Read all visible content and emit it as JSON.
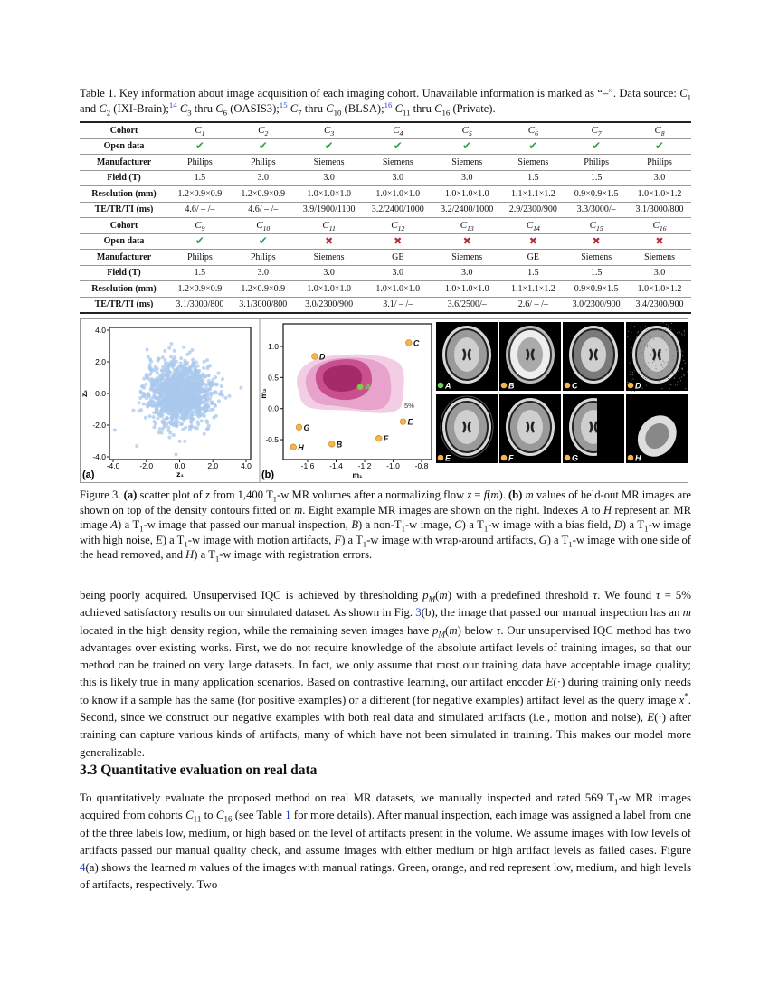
{
  "table_caption": [
    [
      "Table 1. Key information about image acquisition of each imaging cohort. Unavailable information is marked as “–”. Data source: ",
      ""
    ],
    [
      "C",
      "i"
    ],
    [
      "1",
      "sub"
    ],
    [
      " and ",
      ""
    ],
    [
      "C",
      "i"
    ],
    [
      "2",
      "sub"
    ],
    [
      " (IXI-Brain);",
      ""
    ],
    [
      "14",
      "supl"
    ],
    [
      " ",
      ""
    ],
    [
      "C",
      "i"
    ],
    [
      "3",
      "sub"
    ],
    [
      " thru ",
      ""
    ],
    [
      "C",
      "i"
    ],
    [
      "6",
      "sub"
    ],
    [
      " (OASIS3);",
      ""
    ],
    [
      "15",
      "supl"
    ],
    [
      " ",
      ""
    ],
    [
      "C",
      "i"
    ],
    [
      "7",
      "sub"
    ],
    [
      " thru ",
      ""
    ],
    [
      "C",
      "i"
    ],
    [
      "10",
      "sub"
    ],
    [
      " (BLSA);",
      ""
    ],
    [
      "16",
      "supl"
    ],
    [
      " ",
      ""
    ],
    [
      "C",
      "i"
    ],
    [
      "11",
      "sub"
    ],
    [
      " thru ",
      ""
    ],
    [
      "C",
      "i"
    ],
    [
      "16",
      "sub"
    ],
    [
      " (Private).",
      ""
    ]
  ],
  "table": {
    "row_labels": [
      "Cohort",
      "Open data",
      "Manufacturer",
      "Field (T)",
      "Resolution (mm)",
      "TE/TR/TI (ms)"
    ],
    "blocks": [
      {
        "cohorts": [
          "1",
          "2",
          "3",
          "4",
          "5",
          "6",
          "7",
          "8"
        ],
        "open": [
          true,
          true,
          true,
          true,
          true,
          true,
          true,
          true
        ],
        "manufacturer": [
          "Philips",
          "Philips",
          "Siemens",
          "Siemens",
          "Siemens",
          "Siemens",
          "Philips",
          "Philips"
        ],
        "field": [
          "1.5",
          "3.0",
          "3.0",
          "3.0",
          "3.0",
          "1.5",
          "1.5",
          "3.0"
        ],
        "resolution": [
          "1.2×0.9×0.9",
          "1.2×0.9×0.9",
          "1.0×1.0×1.0",
          "1.0×1.0×1.0",
          "1.0×1.0×1.0",
          "1.1×1.1×1.2",
          "0.9×0.9×1.5",
          "1.0×1.0×1.2"
        ],
        "te_tr_ti": [
          "4.6/ – /–",
          "4.6/ – /–",
          "3.9/1900/1100",
          "3.2/2400/1000",
          "3.2/2400/1000",
          "2.9/2300/900",
          "3.3/3000/–",
          "3.1/3000/800"
        ]
      },
      {
        "cohorts": [
          "9",
          "10",
          "11",
          "12",
          "13",
          "14",
          "15",
          "16"
        ],
        "open": [
          true,
          true,
          false,
          false,
          false,
          false,
          false,
          false
        ],
        "manufacturer": [
          "Philips",
          "Philips",
          "Siemens",
          "GE",
          "Siemens",
          "GE",
          "Siemens",
          "Siemens"
        ],
        "field": [
          "1.5",
          "3.0",
          "3.0",
          "3.0",
          "3.0",
          "1.5",
          "1.5",
          "3.0"
        ],
        "resolution": [
          "1.2×0.9×0.9",
          "1.2×0.9×0.9",
          "1.0×1.0×1.0",
          "1.0×1.0×1.0",
          "1.0×1.0×1.0",
          "1.1×1.1×1.2",
          "0.9×0.9×1.5",
          "1.0×1.0×1.2"
        ],
        "te_tr_ti": [
          "3.1/3000/800",
          "3.1/3000/800",
          "3.0/2300/900",
          "3.1/ – /–",
          "3.6/2500/–",
          "2.6/ – /–",
          "3.0/2300/900",
          "3.4/2300/900"
        ]
      }
    ],
    "icons": {
      "yes": "check-icon",
      "no": "cross-icon"
    },
    "colors": {
      "yes": "#2e9e4f",
      "no": "#b0303a"
    }
  },
  "chart_data": [
    {
      "type": "scatter",
      "panel_label": "(a)",
      "xlabel": "z₁",
      "ylabel": "z₂",
      "xlim": [
        -4.0,
        4.0
      ],
      "ylim": [
        -4.0,
        4.0
      ],
      "xticks": [
        "-4.0",
        "-2.0",
        "0.0",
        "2.0",
        "4.0"
      ],
      "yticks": [
        "4.0",
        "2.0",
        "0.0",
        "-2.0",
        "-4.0"
      ],
      "point_count": 1400,
      "distribution": "approximately standard normal, centered at (0,0)",
      "color": "#a9c8ec"
    },
    {
      "type": "scatter",
      "panel_label": "(b)",
      "xlabel": "m₁",
      "ylabel": "m₂",
      "xlim": [
        -1.75,
        -0.78
      ],
      "ylim": [
        -0.72,
        1.3
      ],
      "xticks": [
        "-1.6",
        "-1.4",
        "-1.2",
        "-1.0",
        "-0.8"
      ],
      "yticks": [
        "1.0",
        "0.5",
        "0.0",
        "-0.5"
      ],
      "contour_label": "5%",
      "contour_colors": [
        "#f3cde3",
        "#e7a3cb",
        "#c9508f",
        "#a52a6a"
      ],
      "points": [
        {
          "label": "A",
          "x": -1.23,
          "y": 0.35,
          "color": "#6fd05a"
        },
        {
          "label": "B",
          "x": -1.43,
          "y": -0.57,
          "color": "#f5b54a"
        },
        {
          "label": "C",
          "x": -0.89,
          "y": 1.06,
          "color": "#f5b54a"
        },
        {
          "label": "D",
          "x": -1.55,
          "y": 0.84,
          "color": "#f5b54a"
        },
        {
          "label": "E",
          "x": -0.93,
          "y": -0.21,
          "color": "#f5b54a"
        },
        {
          "label": "F",
          "x": -1.1,
          "y": -0.48,
          "color": "#f5b54a"
        },
        {
          "label": "G",
          "x": -1.66,
          "y": -0.3,
          "color": "#f5b54a"
        },
        {
          "label": "H",
          "x": -1.7,
          "y": -0.62,
          "color": "#f5b54a"
        }
      ]
    }
  ],
  "mr_images": [
    {
      "label": "A",
      "dot": "#6fd05a",
      "kind": "normal"
    },
    {
      "label": "B",
      "dot": "#f5b54a",
      "kind": "non-t1"
    },
    {
      "label": "C",
      "dot": "#f5b54a",
      "kind": "bias"
    },
    {
      "label": "D",
      "dot": "#f5b54a",
      "kind": "noise"
    },
    {
      "label": "E",
      "dot": "#f5b54a",
      "kind": "motion"
    },
    {
      "label": "F",
      "dot": "#f5b54a",
      "kind": "wrap"
    },
    {
      "label": "G",
      "dot": "#f5b54a",
      "kind": "half"
    },
    {
      "label": "H",
      "dot": "#f5b54a",
      "kind": "registration"
    }
  ],
  "figure_caption": [
    [
      "Figure 3. ",
      ""
    ],
    [
      "(a)",
      "b"
    ],
    [
      " scatter plot of ",
      ""
    ],
    [
      "z",
      "i"
    ],
    [
      " from 1,400 T",
      ""
    ],
    [
      "1",
      "sub"
    ],
    [
      "-w MR volumes after a normalizing flow ",
      ""
    ],
    [
      "z",
      "i"
    ],
    [
      " = ",
      ""
    ],
    [
      "f",
      "i"
    ],
    [
      "(",
      ""
    ],
    [
      "m",
      "i"
    ],
    [
      "). ",
      ""
    ],
    [
      "(b)",
      "b"
    ],
    [
      " ",
      ""
    ],
    [
      "m",
      "i"
    ],
    [
      " values of held-out MR images are shown on top of the density contours fitted on ",
      ""
    ],
    [
      "m",
      "i"
    ],
    [
      ". Eight example MR images are shown on the right. Indexes ",
      ""
    ],
    [
      "A",
      "i"
    ],
    [
      " to ",
      ""
    ],
    [
      "H",
      "i"
    ],
    [
      " represent an MR image ",
      ""
    ],
    [
      "A",
      "i"
    ],
    [
      ") a T",
      ""
    ],
    [
      "1",
      "sub"
    ],
    [
      "-w image that passed our manual inspection, ",
      ""
    ],
    [
      "B",
      "i"
    ],
    [
      ") a non-T",
      ""
    ],
    [
      "1",
      "sub"
    ],
    [
      "-w image, ",
      ""
    ],
    [
      "C",
      "i"
    ],
    [
      ") a T",
      ""
    ],
    [
      "1",
      "sub"
    ],
    [
      "-w image with a bias field, ",
      ""
    ],
    [
      "D",
      "i"
    ],
    [
      ") a T",
      ""
    ],
    [
      "1",
      "sub"
    ],
    [
      "-w image with high noise, ",
      ""
    ],
    [
      "E",
      "i"
    ],
    [
      ") a T",
      ""
    ],
    [
      "1",
      "sub"
    ],
    [
      "-w image with motion artifacts, ",
      ""
    ],
    [
      "F",
      "i"
    ],
    [
      ") a T",
      ""
    ],
    [
      "1",
      "sub"
    ],
    [
      "-w image with wrap-around artifacts, ",
      ""
    ],
    [
      "G",
      "i"
    ],
    [
      ") a T",
      ""
    ],
    [
      "1",
      "sub"
    ],
    [
      "-w image with one side of the head removed, and ",
      ""
    ],
    [
      "H",
      "i"
    ],
    [
      ") a T",
      ""
    ],
    [
      "1",
      "sub"
    ],
    [
      "-w image with registration errors.",
      ""
    ]
  ],
  "paragraph1": [
    [
      "being poorly acquired. Unsupervised IQC is achieved by thresholding ",
      ""
    ],
    [
      "p",
      "i"
    ],
    [
      "M",
      "isub"
    ],
    [
      "(",
      ""
    ],
    [
      "m",
      "i"
    ],
    [
      ") with a predefined threshold ",
      ""
    ],
    [
      "τ",
      "i"
    ],
    [
      ". We found ",
      ""
    ],
    [
      "τ",
      "i"
    ],
    [
      " = 5% achieved satisfactory results on our simulated dataset. As shown in Fig. ",
      ""
    ],
    [
      "3",
      "link"
    ],
    [
      "(b), the image that passed our manual inspection has an ",
      ""
    ],
    [
      "m",
      "i"
    ],
    [
      " located in the high density region, while the remaining seven images have ",
      ""
    ],
    [
      "p",
      "i"
    ],
    [
      "M",
      "isub"
    ],
    [
      "(",
      ""
    ],
    [
      "m",
      "i"
    ],
    [
      ") below ",
      ""
    ],
    [
      "τ",
      "i"
    ],
    [
      ". Our unsupervised IQC method has two advantages over existing works. First, we do not require knowledge of the absolute artifact levels of training images, so that our method can be trained on very large datasets. In fact, we only assume that most our training data have acceptable image quality; this is likely true in many application scenarios. Based on contrastive learning, our artifact encoder ",
      ""
    ],
    [
      "E",
      "i"
    ],
    [
      "(·) during training only needs to know if a sample has the same (for positive examples) or a different (for negative examples) artifact level as the query image ",
      ""
    ],
    [
      "x",
      "i"
    ],
    [
      "*",
      "sup"
    ],
    [
      ". Second, since we construct our negative examples with both real data and simulated artifacts (i.e., motion and noise), ",
      ""
    ],
    [
      "E",
      "i"
    ],
    [
      "(·) after training can capture various kinds of artifacts, many of which have not been simulated in training. This makes our model more generalizable.",
      ""
    ]
  ],
  "section_heading": "3.3  Quantitative evaluation on real data",
  "paragraph2": [
    [
      "To quantitatively evaluate the proposed method on real MR datasets, we manually inspected and rated 569 T",
      ""
    ],
    [
      "1",
      "sub"
    ],
    [
      "-w MR images acquired from cohorts ",
      ""
    ],
    [
      "C",
      "i"
    ],
    [
      "11",
      "sub"
    ],
    [
      " to ",
      ""
    ],
    [
      "C",
      "i"
    ],
    [
      "16",
      "sub"
    ],
    [
      " (see Table ",
      ""
    ],
    [
      "1",
      "link"
    ],
    [
      " for more details). After manual inspection, each image was assigned a label from one of the three labels low, medium, or high based on the level of artifacts present in the volume. We assume images with low levels of artifacts passed our manual quality check, and assume images with either medium or high artifact levels as failed cases. Figure ",
      ""
    ],
    [
      "4",
      "link"
    ],
    [
      "(a) shows the learned ",
      ""
    ],
    [
      "m",
      "i"
    ],
    [
      " values of the images with manual ratings. Green, orange, and red represent low, medium, and high levels of artifacts, respectively. Two",
      ""
    ]
  ]
}
